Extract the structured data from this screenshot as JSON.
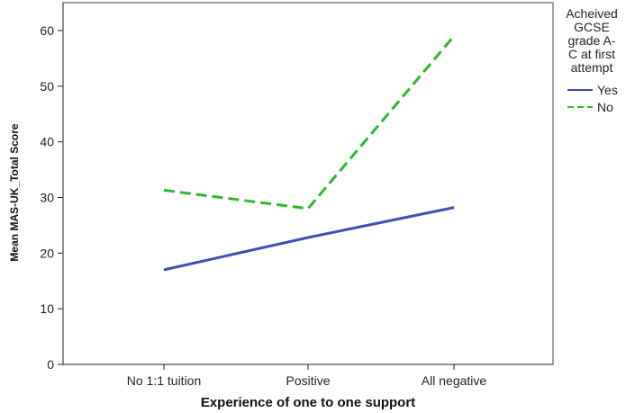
{
  "chart_data": {
    "type": "line",
    "categories": [
      "No 1:1 tuition",
      "Positive",
      "All negative"
    ],
    "xlabel": "Experience of one to one support",
    "ylabel": "Mean MAS-UK_Total Score",
    "ylim": [
      0,
      65
    ],
    "yticks": [
      0,
      10,
      20,
      30,
      40,
      50,
      60
    ],
    "grid": false,
    "legend": {
      "title_lines": [
        "Acheived",
        "GCSE",
        "grade A-",
        "C at first",
        "attempt"
      ],
      "placement": "right"
    },
    "series": [
      {
        "name": "Yes",
        "values": [
          17.0,
          22.8,
          28.2
        ],
        "color": "#3f4fb3",
        "dash": "solid"
      },
      {
        "name": "No",
        "values": [
          31.3,
          28.0,
          59.0
        ],
        "color": "#2eb82e",
        "dash": "dashed"
      }
    ]
  }
}
